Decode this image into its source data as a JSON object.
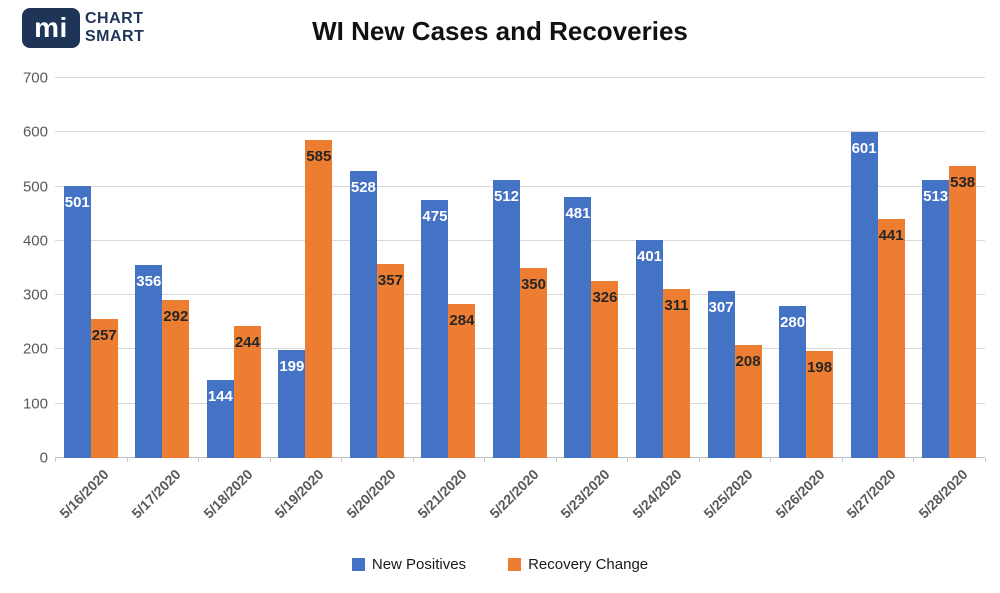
{
  "logo": {
    "mark": "mi",
    "line1": "CHART",
    "line2": "SMART"
  },
  "header": {
    "title": "WI New Cases and Recoveries"
  },
  "chart_data": {
    "type": "bar",
    "title": "WI New Cases and Recoveries",
    "categories": [
      "5/16/2020",
      "5/17/2020",
      "5/18/2020",
      "5/19/2020",
      "5/20/2020",
      "5/21/2020",
      "5/22/2020",
      "5/23/2020",
      "5/24/2020",
      "5/25/2020",
      "5/26/2020",
      "5/27/2020",
      "5/28/2020"
    ],
    "series": [
      {
        "name": "New Positives",
        "color": "#4472C4",
        "label_color": "#FFFFFF",
        "values": [
          501,
          356,
          144,
          199,
          528,
          475,
          512,
          481,
          401,
          307,
          280,
          601,
          513
        ]
      },
      {
        "name": "Recovery Change",
        "color": "#ED7D31",
        "label_color": "#262626",
        "values": [
          257,
          292,
          244,
          585,
          357,
          284,
          350,
          326,
          311,
          208,
          198,
          441,
          538
        ]
      }
    ],
    "ylim": [
      0,
      700
    ],
    "ytick_interval": 100,
    "grid": true,
    "legend_position": "bottom",
    "xlabel": "",
    "ylabel": ""
  },
  "colors": {
    "bar_blue": "#4472C4",
    "bar_orange": "#ED7D31",
    "gridline": "#D9D9D9",
    "axis_line": "#BFBFBF",
    "axis_text": "#595959",
    "logo_navy": "#1F3558",
    "title_text": "#111111"
  }
}
